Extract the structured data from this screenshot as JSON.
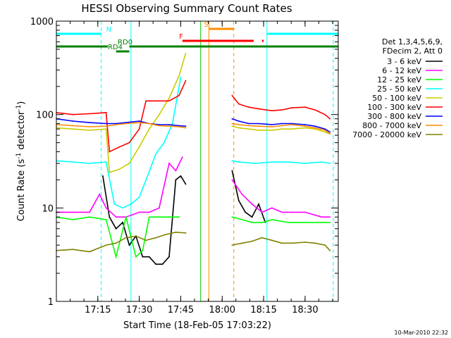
{
  "chart_data": {
    "type": "line",
    "title": "HESSI Observing Summary Count Rates",
    "xlabel": "Start Time (18-Feb-05 17:03:22)",
    "ylabel_text": "Count Rate (s",
    "ylabel_sup": "-1",
    "ylabel_text2": " detector",
    "ylabel_sup2": "-1",
    "ylabel_end": ")",
    "y_scale": "log",
    "ylim": [
      1,
      1000
    ],
    "xlim_minutes": [
      17.0,
      18.7
    ],
    "x_ticks": [
      {
        "t": 17.25,
        "label": "17:15"
      },
      {
        "t": 17.5,
        "label": "17:30"
      },
      {
        "t": 17.75,
        "label": "17:45"
      },
      {
        "t": 18.0,
        "label": "18:00"
      },
      {
        "t": 18.25,
        "label": "18:15"
      },
      {
        "t": 18.5,
        "label": "18:30"
      }
    ],
    "y_ticks": [
      {
        "v": 1,
        "label": "1"
      },
      {
        "v": 10,
        "label": "10"
      },
      {
        "v": 100,
        "label": "100"
      },
      {
        "v": 1000,
        "label": "1000"
      }
    ],
    "legend_header": [
      "Det 1,3,4,5,6,9,",
      "FDecim 2, Att 0"
    ],
    "series": [
      {
        "name": "3 - 6 keV",
        "color": "#000000",
        "x": [
          17.0,
          17.25,
          17.28,
          17.32,
          17.36,
          17.4,
          17.44,
          17.48,
          17.52,
          17.56,
          17.6,
          17.64,
          17.68,
          17.72,
          17.75,
          17.78,
          17.8,
          18.06,
          18.1,
          18.14,
          18.18,
          18.22,
          18.26,
          18.29
        ],
        "y": [
          null,
          null,
          22,
          8,
          6,
          7,
          4,
          5,
          3,
          3,
          2.5,
          2.5,
          3,
          20,
          22,
          18,
          null,
          25,
          12,
          9,
          8,
          11,
          7,
          null
        ]
      },
      {
        "name": "6 - 12 keV",
        "color": "#ff00ff",
        "x": [
          17.0,
          17.1,
          17.2,
          17.26,
          17.3,
          17.36,
          17.42,
          17.5,
          17.56,
          17.62,
          17.68,
          17.72,
          17.76,
          17.8,
          18.06,
          18.12,
          18.18,
          18.24,
          18.3,
          18.36,
          18.42,
          18.5,
          18.6,
          18.65
        ],
        "y": [
          9,
          9,
          9,
          14,
          10,
          8,
          8,
          9,
          9,
          10,
          30,
          25,
          35,
          null,
          20,
          14,
          11,
          9,
          10,
          9,
          9,
          9,
          8,
          8
        ]
      },
      {
        "name": "12 - 25 keV",
        "color": "#00ff00",
        "x": [
          17.0,
          17.1,
          17.2,
          17.3,
          17.36,
          17.42,
          17.48,
          17.52,
          17.56,
          17.62,
          17.68,
          17.74,
          17.8,
          18.06,
          18.12,
          18.18,
          18.24,
          18.3,
          18.4,
          18.5,
          18.6,
          18.65
        ],
        "y": [
          8,
          7.5,
          8,
          7.5,
          3,
          8,
          3,
          3.5,
          8,
          8,
          8,
          8,
          null,
          8,
          7.5,
          7,
          7,
          7.5,
          7,
          7,
          7,
          7
        ]
      },
      {
        "name": "25 - 50 keV",
        "color": "#00ffff",
        "x": [
          17.0,
          17.1,
          17.2,
          17.3,
          17.35,
          17.4,
          17.45,
          17.5,
          17.55,
          17.6,
          17.65,
          17.7,
          17.75,
          17.78,
          17.8,
          18.06,
          18.1,
          18.2,
          18.3,
          18.4,
          18.5,
          18.6,
          18.65
        ],
        "y": [
          32,
          31,
          30,
          31,
          11,
          10,
          11,
          13,
          22,
          38,
          50,
          80,
          250,
          null,
          null,
          32,
          31,
          30,
          31,
          31,
          30,
          31,
          30
        ]
      },
      {
        "name": "50 - 100 keV",
        "color": "#cccc00",
        "x": [
          17.0,
          17.1,
          17.2,
          17.3,
          17.32,
          17.38,
          17.44,
          17.5,
          17.56,
          17.62,
          17.68,
          17.74,
          17.78,
          17.8,
          18.06,
          18.1,
          18.16,
          18.22,
          18.3,
          18.36,
          18.42,
          18.5,
          18.56,
          18.62,
          18.65
        ],
        "y": [
          72,
          70,
          68,
          70,
          24,
          26,
          30,
          45,
          70,
          100,
          150,
          260,
          450,
          null,
          75,
          72,
          70,
          68,
          68,
          70,
          70,
          72,
          70,
          65,
          62
        ]
      },
      {
        "name": "100 - 300 keV",
        "color": "#ff0000",
        "x": [
          17.0,
          17.1,
          17.2,
          17.3,
          17.32,
          17.38,
          17.44,
          17.5,
          17.54,
          17.58,
          17.62,
          17.68,
          17.74,
          17.78,
          17.8,
          18.06,
          18.1,
          18.16,
          18.22,
          18.3,
          18.36,
          18.42,
          18.5,
          18.56,
          18.62,
          18.65
        ],
        "y": [
          105,
          100,
          102,
          105,
          40,
          45,
          50,
          70,
          140,
          140,
          140,
          140,
          160,
          230,
          null,
          160,
          130,
          120,
          115,
          110,
          112,
          118,
          120,
          112,
          100,
          90
        ]
      },
      {
        "name": "300 - 800 keV",
        "color": "#0000ff",
        "x": [
          17.0,
          17.1,
          17.2,
          17.3,
          17.36,
          17.42,
          17.5,
          17.56,
          17.62,
          17.68,
          17.74,
          17.78,
          17.8,
          18.06,
          18.1,
          18.16,
          18.22,
          18.3,
          18.36,
          18.42,
          18.5,
          18.56,
          18.62,
          18.65
        ],
        "y": [
          90,
          85,
          82,
          80,
          80,
          82,
          85,
          80,
          78,
          78,
          76,
          75,
          null,
          90,
          85,
          80,
          80,
          78,
          80,
          80,
          78,
          75,
          70,
          65
        ]
      },
      {
        "name": "800 - 7000 keV",
        "color": "#ff8c00",
        "x": [
          17.0,
          17.1,
          17.2,
          17.3,
          17.36,
          17.42,
          17.5,
          17.56,
          17.62,
          17.68,
          17.74,
          17.78,
          17.8,
          18.06,
          18.1,
          18.16,
          18.22,
          18.3,
          18.36,
          18.42,
          18.5,
          18.56,
          18.62,
          18.65
        ],
        "y": [
          78,
          76,
          74,
          75,
          78,
          80,
          82,
          80,
          76,
          75,
          74,
          72,
          null,
          80,
          78,
          76,
          75,
          74,
          76,
          78,
          75,
          72,
          68,
          62
        ]
      },
      {
        "name": "7000 - 20000 keV",
        "color": "#808000",
        "x": [
          17.0,
          17.1,
          17.2,
          17.3,
          17.36,
          17.42,
          17.48,
          17.54,
          17.6,
          17.66,
          17.72,
          17.78,
          17.8,
          18.06,
          18.12,
          18.18,
          18.24,
          18.3,
          18.36,
          18.42,
          18.5,
          18.56,
          18.62,
          18.65
        ],
        "y": [
          3.5,
          3.6,
          3.4,
          4,
          4.2,
          4.8,
          5,
          4.5,
          4.8,
          5.2,
          5.5,
          5.4,
          null,
          4,
          4.2,
          4.4,
          4.8,
          4.5,
          4.2,
          4.2,
          4.3,
          4.2,
          4,
          3.5
        ]
      }
    ],
    "state_bars": [
      {
        "label": "N",
        "color": "#00ffff",
        "segments": [
          [
            17.0,
            17.27
          ],
          [
            18.27,
            18.7
          ]
        ]
      },
      {
        "label": "S",
        "color": "#ff8c00",
        "segments": [
          [
            17.92,
            18.07
          ]
        ]
      },
      {
        "label": "F",
        "color": "#ff0000",
        "segments": [
          [
            17.76,
            18.19
          ],
          [
            18.24,
            18.25
          ]
        ]
      },
      {
        "label": "RD0",
        "color": "#008000",
        "segments": [
          [
            17.0,
            17.31
          ],
          [
            17.44,
            18.7
          ]
        ]
      },
      {
        "label": "RD4",
        "color": "#008000",
        "segments": [
          [
            17.36,
            17.44
          ]
        ]
      }
    ],
    "vertical_markers": [
      {
        "t": 17.0,
        "color": "#00ffff",
        "style": "solid"
      },
      {
        "t": 17.27,
        "color": "#00ffff",
        "style": "dashed"
      },
      {
        "t": 17.45,
        "color": "#00ffff",
        "style": "solid"
      },
      {
        "t": 17.87,
        "color": "#00cc00",
        "style": "solid"
      },
      {
        "t": 17.92,
        "color": "#ff8c00",
        "style": "solid"
      },
      {
        "t": 18.07,
        "color": "#ff8c00",
        "style": "dashed"
      },
      {
        "t": 18.27,
        "color": "#00ffff",
        "style": "solid"
      },
      {
        "t": 18.67,
        "color": "#00ffff",
        "style": "dashed"
      }
    ],
    "footer_date": "10-Mar-2010 22:32"
  }
}
